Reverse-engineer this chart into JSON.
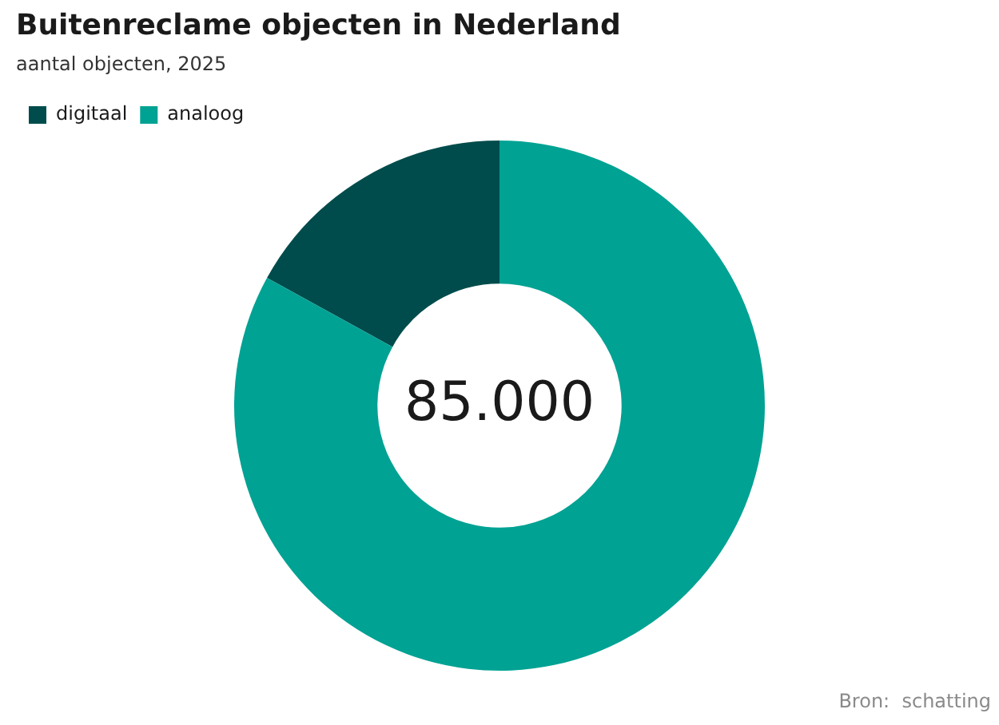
{
  "chart_data": {
    "type": "donut",
    "title": "Buitenreclame objecten in Nederland",
    "subtitle": "aantal objecten, 2025",
    "categories": [
      "digitaal",
      "analoog"
    ],
    "values": [
      17,
      83
    ],
    "colors": [
      "#004c4c",
      "#00a293"
    ],
    "legend": "top left",
    "annotations": [
      "85.000",
      "Bron:  schatting"
    ]
  }
}
